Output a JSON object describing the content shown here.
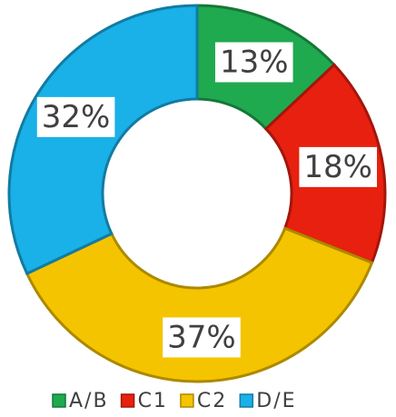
{
  "chart_data": {
    "type": "donut",
    "categories": [
      "A/B",
      "C1",
      "C2",
      "D/E"
    ],
    "series": [
      {
        "values": [
          13,
          18,
          37,
          32
        ]
      }
    ],
    "value_labels": [
      "13%",
      "18%",
      "37%",
      "32%"
    ],
    "colors": [
      "#1faa4f",
      "#e8200f",
      "#f5c400",
      "#1ab0e8"
    ],
    "legend": "bottom"
  }
}
